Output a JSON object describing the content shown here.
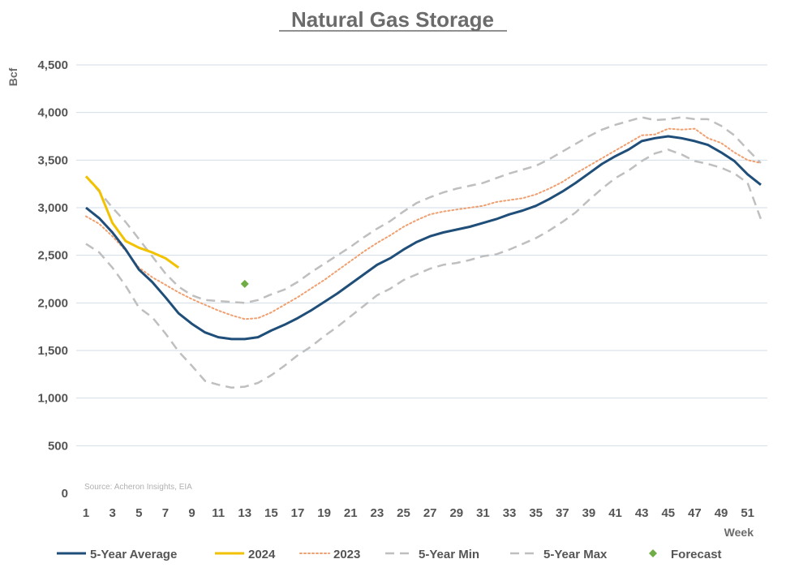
{
  "chart_data": {
    "type": "line",
    "title": "Natural Gas Storage",
    "ylabel": "Bcf",
    "xlabel": "Week",
    "source": "Source: Acheron Insights, EIA",
    "ylim": [
      0,
      4500
    ],
    "yticks": [
      "0",
      "500",
      "1,000",
      "1,500",
      "2,000",
      "2,500",
      "3,000",
      "3,500",
      "4,000",
      "4,500"
    ],
    "xlim": [
      1,
      52
    ],
    "xticks": [
      "1",
      "3",
      "5",
      "7",
      "9",
      "11",
      "13",
      "15",
      "17",
      "19",
      "21",
      "23",
      "25",
      "27",
      "29",
      "31",
      "33",
      "35",
      "37",
      "39",
      "41",
      "43",
      "45",
      "47",
      "49",
      "51"
    ],
    "grid": "horizontal",
    "legend": "bottom",
    "series": [
      {
        "name": "5-Year Average",
        "style": "solid",
        "color": "#1f4e79",
        "x": [
          1,
          2,
          3,
          4,
          5,
          6,
          7,
          8,
          9,
          10,
          11,
          12,
          13,
          14,
          15,
          16,
          17,
          18,
          19,
          20,
          21,
          22,
          23,
          24,
          25,
          26,
          27,
          28,
          29,
          30,
          31,
          32,
          33,
          34,
          35,
          36,
          37,
          38,
          39,
          40,
          41,
          42,
          43,
          44,
          45,
          46,
          47,
          48,
          49,
          50,
          51,
          52
        ],
        "values": [
          3000,
          2890,
          2740,
          2560,
          2350,
          2220,
          2060,
          1890,
          1780,
          1690,
          1640,
          1620,
          1620,
          1640,
          1710,
          1770,
          1840,
          1920,
          2010,
          2100,
          2200,
          2300,
          2400,
          2470,
          2560,
          2640,
          2700,
          2740,
          2770,
          2800,
          2840,
          2880,
          2930,
          2970,
          3020,
          3090,
          3170,
          3260,
          3360,
          3460,
          3540,
          3610,
          3700,
          3730,
          3750,
          3730,
          3700,
          3660,
          3580,
          3490,
          3350,
          3240
        ]
      },
      {
        "name": "2024",
        "style": "solid",
        "color": "#f2c200",
        "x": [
          1,
          2,
          3,
          4,
          5,
          6,
          7,
          8
        ],
        "values": [
          3330,
          3180,
          2840,
          2650,
          2580,
          2530,
          2470,
          2370
        ]
      },
      {
        "name": "2023",
        "style": "dotted",
        "color": "#f0a070",
        "x": [
          1,
          2,
          3,
          4,
          5,
          6,
          7,
          8,
          9,
          10,
          11,
          12,
          13,
          14,
          15,
          16,
          17,
          18,
          19,
          20,
          21,
          22,
          23,
          24,
          25,
          26,
          27,
          28,
          29,
          30,
          31,
          32,
          33,
          34,
          35,
          36,
          37,
          38,
          39,
          40,
          41,
          42,
          43,
          44,
          45,
          46,
          47,
          48,
          49,
          50,
          51,
          52
        ],
        "values": [
          2910,
          2830,
          2700,
          2550,
          2370,
          2270,
          2190,
          2110,
          2040,
          1980,
          1920,
          1870,
          1830,
          1840,
          1900,
          1980,
          2060,
          2150,
          2240,
          2340,
          2440,
          2540,
          2630,
          2710,
          2800,
          2870,
          2930,
          2960,
          2980,
          3000,
          3020,
          3060,
          3080,
          3100,
          3140,
          3200,
          3270,
          3360,
          3440,
          3520,
          3600,
          3680,
          3760,
          3770,
          3830,
          3820,
          3830,
          3730,
          3680,
          3580,
          3500,
          3470
        ]
      },
      {
        "name": "5-Year Min",
        "style": "dashed",
        "color": "#bfbfbf",
        "x": [
          1,
          2,
          3,
          4,
          5,
          6,
          7,
          8,
          9,
          10,
          11,
          12,
          13,
          14,
          15,
          16,
          17,
          18,
          19,
          20,
          21,
          22,
          23,
          24,
          25,
          26,
          27,
          28,
          29,
          30,
          31,
          32,
          33,
          34,
          35,
          36,
          37,
          38,
          39,
          40,
          41,
          42,
          43,
          44,
          45,
          46,
          47,
          48,
          49,
          50,
          51,
          52
        ],
        "values": [
          2620,
          2530,
          2370,
          2180,
          1950,
          1850,
          1680,
          1490,
          1340,
          1180,
          1140,
          1110,
          1120,
          1160,
          1240,
          1340,
          1450,
          1540,
          1650,
          1750,
          1860,
          1970,
          2080,
          2150,
          2240,
          2300,
          2360,
          2400,
          2420,
          2450,
          2490,
          2510,
          2560,
          2620,
          2680,
          2760,
          2850,
          2950,
          3080,
          3200,
          3310,
          3390,
          3490,
          3570,
          3610,
          3560,
          3490,
          3460,
          3420,
          3360,
          3260,
          2880
        ]
      },
      {
        "name": "5-Year Max",
        "style": "dashed",
        "color": "#bfbfbf",
        "x": [
          1,
          2,
          3,
          4,
          5,
          6,
          7,
          8,
          9,
          10,
          11,
          12,
          13,
          14,
          15,
          16,
          17,
          18,
          19,
          20,
          21,
          22,
          23,
          24,
          25,
          26,
          27,
          28,
          29,
          30,
          31,
          32,
          33,
          34,
          35,
          36,
          37,
          38,
          39,
          40,
          41,
          42,
          43,
          44,
          45,
          46,
          47,
          48,
          49,
          50,
          51,
          52
        ],
        "values": [
          3330,
          3170,
          3000,
          2850,
          2670,
          2490,
          2310,
          2170,
          2080,
          2030,
          2020,
          2010,
          2000,
          2030,
          2090,
          2140,
          2220,
          2320,
          2410,
          2500,
          2590,
          2690,
          2780,
          2860,
          2960,
          3050,
          3110,
          3160,
          3200,
          3230,
          3260,
          3310,
          3360,
          3400,
          3440,
          3510,
          3590,
          3670,
          3750,
          3820,
          3870,
          3910,
          3950,
          3920,
          3930,
          3950,
          3930,
          3930,
          3860,
          3760,
          3610,
          3470
        ]
      },
      {
        "name": "Forecast",
        "style": "marker",
        "color": "#70ad47",
        "x": [
          13
        ],
        "values": [
          2200
        ]
      }
    ]
  }
}
